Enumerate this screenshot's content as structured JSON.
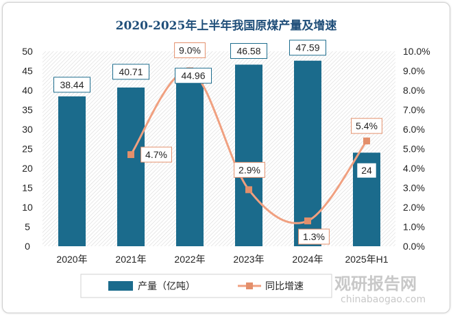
{
  "chart_data": {
    "type": "bar",
    "title": "2020-2025年上半年我国原煤产量及增速",
    "categories": [
      "2020年",
      "2021年",
      "2022年",
      "2023年",
      "2024年",
      "2025年H1"
    ],
    "series": [
      {
        "name": "产量（亿吨）",
        "type": "bar",
        "axis": "left",
        "values": [
          38.44,
          40.71,
          44.96,
          46.58,
          47.59,
          24
        ],
        "labels": [
          "38.44",
          "40.71",
          "44.96",
          "46.58",
          "47.59",
          "24"
        ]
      },
      {
        "name": "同比增速",
        "type": "line",
        "axis": "right",
        "values": [
          null,
          4.7,
          9.0,
          2.9,
          1.3,
          5.4
        ],
        "labels": [
          "",
          "4.7%",
          "9.0%",
          "2.9%",
          "1.3%",
          "5.4%"
        ]
      }
    ],
    "y_left": {
      "ylim": [
        0,
        50
      ],
      "ticks": [
        "0",
        "5",
        "10",
        "15",
        "20",
        "25",
        "30",
        "35",
        "40",
        "45",
        "50"
      ]
    },
    "y_right": {
      "ylim": [
        0,
        10
      ],
      "ticks": [
        "0.0%",
        "1.0%",
        "2.0%",
        "3.0%",
        "4.0%",
        "5.0%",
        "6.0%",
        "7.0%",
        "8.0%",
        "9.0%",
        "10.0%"
      ]
    },
    "grid": false,
    "legend": "bottom",
    "colors": {
      "bar": "#1b6b8c",
      "line": "#f0a080",
      "marker": "#e38f6b",
      "title": "#1f4e79"
    }
  },
  "watermark": {
    "brand": "观研报告网",
    "url": "chinabaogao.com"
  }
}
